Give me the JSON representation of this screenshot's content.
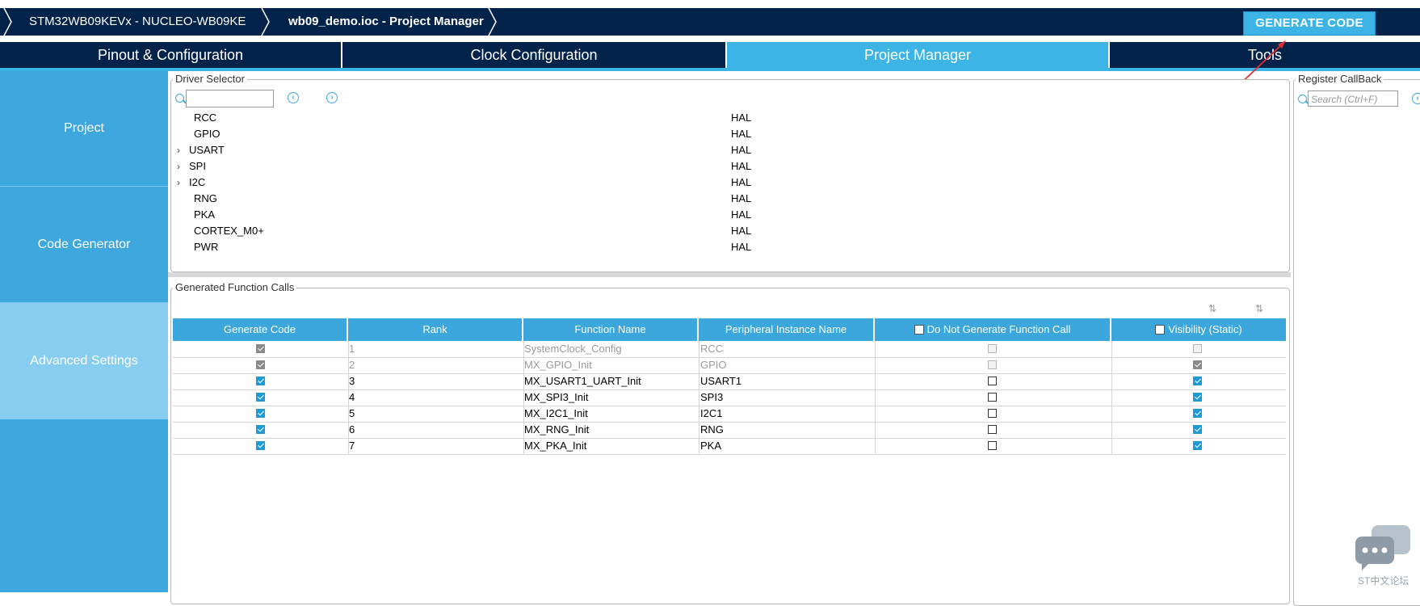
{
  "header": {
    "breadcrumb": [
      "STM32WB09KEVx  -  NUCLEO-WB09KE",
      "wb09_demo.ioc - Project Manager"
    ],
    "generate_button": "GENERATE CODE"
  },
  "tabs": [
    {
      "label": "Pinout & Configuration",
      "active": false
    },
    {
      "label": "Clock Configuration",
      "active": false
    },
    {
      "label": "Project Manager",
      "active": true
    },
    {
      "label": "Tools",
      "active": false
    }
  ],
  "sidebar": {
    "items": [
      {
        "label": "Project"
      },
      {
        "label": "Code Generator"
      },
      {
        "label": "Advanced Settings",
        "active": true
      }
    ]
  },
  "driver_selector": {
    "title": "Driver Selector",
    "search_value": "",
    "rows": [
      {
        "name": "RCC",
        "driver": "HAL",
        "expandable": false
      },
      {
        "name": "GPIO",
        "driver": "HAL",
        "expandable": false
      },
      {
        "name": "USART",
        "driver": "HAL",
        "expandable": true
      },
      {
        "name": "SPI",
        "driver": "HAL",
        "expandable": true
      },
      {
        "name": "I2C",
        "driver": "HAL",
        "expandable": true
      },
      {
        "name": "RNG",
        "driver": "HAL",
        "expandable": false
      },
      {
        "name": "PKA",
        "driver": "HAL",
        "expandable": false
      },
      {
        "name": "CORTEX_M0+",
        "driver": "HAL",
        "expandable": false
      },
      {
        "name": "PWR",
        "driver": "HAL",
        "expandable": false
      }
    ]
  },
  "function_calls": {
    "title": "Generated Function Calls",
    "columns": [
      "Generate Code",
      "Rank",
      "Function Name",
      "Peripheral Instance Name",
      "Do Not Generate Function Call",
      "Visibility (Static)"
    ],
    "rows": [
      {
        "generate": true,
        "rank": "1",
        "function": "SystemClock_Config",
        "instance": "RCC",
        "do_not_generate": false,
        "visibility": false,
        "disabled": true
      },
      {
        "generate": true,
        "rank": "2",
        "function": "MX_GPIO_Init",
        "instance": "GPIO",
        "do_not_generate": false,
        "visibility": true,
        "disabled": true
      },
      {
        "generate": true,
        "rank": "3",
        "function": "MX_USART1_UART_Init",
        "instance": "USART1",
        "do_not_generate": false,
        "visibility": true,
        "disabled": false
      },
      {
        "generate": true,
        "rank": "4",
        "function": "MX_SPI3_Init",
        "instance": "SPI3",
        "do_not_generate": false,
        "visibility": true,
        "disabled": false
      },
      {
        "generate": true,
        "rank": "5",
        "function": "MX_I2C1_Init",
        "instance": "I2C1",
        "do_not_generate": false,
        "visibility": true,
        "disabled": false
      },
      {
        "generate": true,
        "rank": "6",
        "function": "MX_RNG_Init",
        "instance": "RNG",
        "do_not_generate": false,
        "visibility": true,
        "disabled": false
      },
      {
        "generate": true,
        "rank": "7",
        "function": "MX_PKA_Init",
        "instance": "PKA",
        "do_not_generate": false,
        "visibility": true,
        "disabled": false
      }
    ]
  },
  "register_callback": {
    "title": "Register CallBack",
    "search_placeholder": "Search (Ctrl+F)"
  },
  "watermark": {
    "text": "ST中文论坛"
  },
  "colors": {
    "navy": "#03234b",
    "accent": "#3cb4e6",
    "arrow": "#e03030"
  }
}
